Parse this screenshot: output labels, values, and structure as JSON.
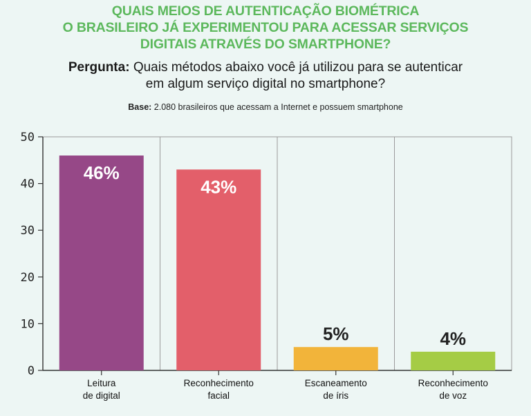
{
  "header": {
    "title_lines": [
      "QUAIS MEIOS DE AUTENTICAÇÃO BIOMÉTRICA",
      "O BRASILEIRO JÁ EXPERIMENTOU PARA ACESSAR SERVIÇOS",
      "DIGITAIS ATRAVÉS DO SMARTPHONE?"
    ],
    "question_label": "Pergunta:",
    "question_line1": "Quais métodos abaixo você já utilizou para se autenticar",
    "question_line2": "em algum serviço digital no smartphone?",
    "base_label": "Base:",
    "base_text": "2.080 brasileiros que acessam a Internet e possuem smartphone"
  },
  "colors": {
    "title": "#5cb85c",
    "grid": "#9a9a9a",
    "axis": "#333333"
  },
  "chart_data": {
    "type": "bar",
    "categories": [
      [
        "Leitura",
        "de digital"
      ],
      [
        "Reconhecimento",
        "facial"
      ],
      [
        "Escaneamento",
        "de íris"
      ],
      [
        "Reconhecimento",
        "de voz"
      ]
    ],
    "values": [
      46,
      43,
      5,
      4
    ],
    "data_labels": [
      "46%",
      "43%",
      "5%",
      "4%"
    ],
    "bar_colors": [
      "#964887",
      "#e35f6a",
      "#f2b43a",
      "#a5cc45"
    ],
    "ylim": [
      0,
      50
    ],
    "yticks": [
      0,
      10,
      20,
      30,
      40,
      50
    ],
    "grid": true
  }
}
